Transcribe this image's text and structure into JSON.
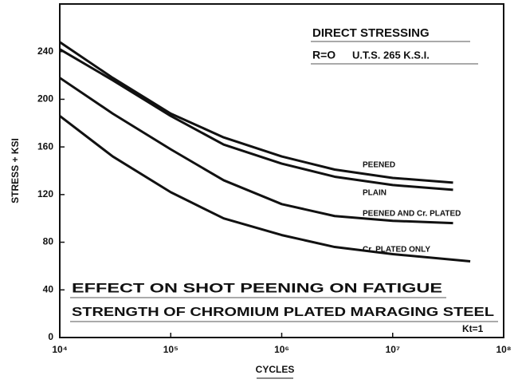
{
  "chart_data": {
    "type": "line",
    "xlabel": "CYCLES",
    "ylabel": "STRESS + KSI",
    "annotations": [
      "DIRECT STRESSING",
      "R=O",
      "U.T.S. 265 K.S.I.",
      "EFFECT ON SHOT PEENING ON FATIGUE",
      "STRENGTH OF CHROMIUM PLATED MARAGING STEEL",
      "Kt=1"
    ],
    "xscale": "log",
    "xlim": [
      10000,
      100000000
    ],
    "xticks": [
      {
        "value": 10000,
        "label": "10⁴"
      },
      {
        "value": 100000,
        "label": "10⁵"
      },
      {
        "value": 1000000,
        "label": "10⁶"
      },
      {
        "value": 10000000,
        "label": "10⁷"
      },
      {
        "value": 100000000,
        "label": "10⁸"
      }
    ],
    "ylim": [
      0,
      280
    ],
    "yticks": [
      0,
      40,
      80,
      120,
      160,
      200,
      240
    ],
    "grid": false,
    "series": [
      {
        "name": "PEENED",
        "color": "#111111",
        "x": [
          10000,
          30000,
          100000,
          300000,
          1000000,
          3000000,
          10000000,
          35000000
        ],
        "values": [
          248,
          218,
          188,
          168,
          152,
          141,
          134,
          130
        ]
      },
      {
        "name": "PLAIN",
        "color": "#111111",
        "x": [
          10000,
          30000,
          100000,
          300000,
          1000000,
          3000000,
          10000000,
          35000000
        ],
        "values": [
          242,
          216,
          186,
          162,
          146,
          135,
          128,
          124
        ]
      },
      {
        "name": "PEENED AND Cr. PLATED",
        "color": "#111111",
        "x": [
          10000,
          30000,
          100000,
          300000,
          1000000,
          3000000,
          10000000,
          35000000
        ],
        "values": [
          218,
          188,
          158,
          132,
          112,
          102,
          98,
          96
        ]
      },
      {
        "name": "Cr. PLATED ONLY",
        "color": "#111111",
        "x": [
          10000,
          30000,
          100000,
          300000,
          1000000,
          3000000,
          10000000,
          50000000
        ],
        "values": [
          186,
          152,
          122,
          100,
          86,
          76,
          70,
          64
        ]
      }
    ]
  }
}
